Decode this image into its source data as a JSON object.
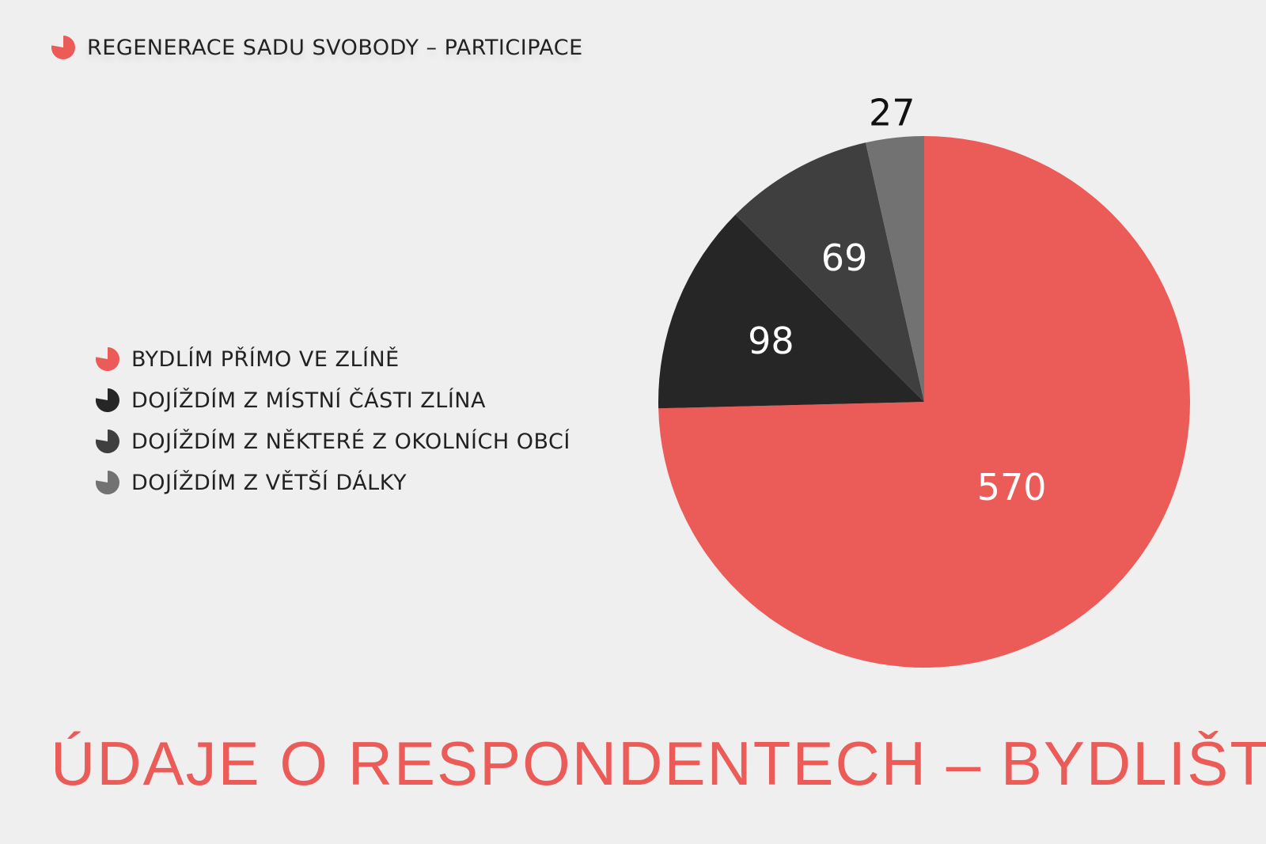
{
  "header": {
    "text": "REGENERACE SADU SVOBODY – PARTICIPACE",
    "icon": "pie-icon",
    "color": "#eb5b57"
  },
  "title": "ÚDAJE O RESPONDENTECH – BYDLIŠTĚ",
  "chart_data": {
    "type": "pie",
    "title": "ÚDAJE O RESPONDENTECH – BYDLIŠTĚ",
    "legend_position": "left",
    "start": "top",
    "direction": "clockwise",
    "slices": [
      {
        "label": "BYDLÍM PŘÍMO VE ZLÍNĚ",
        "value": 570,
        "color": "#eb5b57",
        "value_label": "570"
      },
      {
        "label": "DOJÍŽDÍM Z MÍSTNÍ ČÁSTI ZLÍNA",
        "value": 98,
        "color": "#262626",
        "value_label": "98"
      },
      {
        "label": "DOJÍŽDÍM Z NĚKTERÉ Z OKOLNÍCH OBCÍ",
        "value": 69,
        "color": "#3f3f3f",
        "value_label": "69"
      },
      {
        "label": "DOJÍŽDÍM Z VĚTŠÍ DÁLKY",
        "value": 27,
        "color": "#727272",
        "value_label": "27"
      }
    ]
  }
}
